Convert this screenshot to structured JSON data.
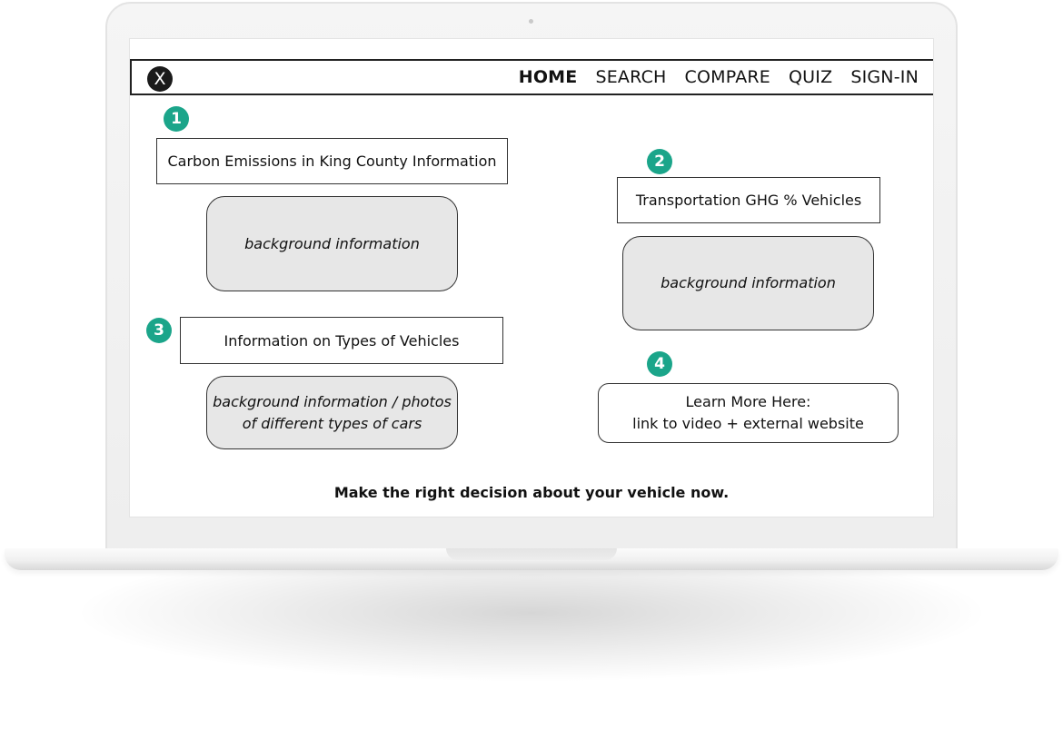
{
  "brand": {
    "logo_letter": "X"
  },
  "nav": {
    "items": [
      {
        "label": "HOME",
        "active": true
      },
      {
        "label": "SEARCH",
        "active": false
      },
      {
        "label": "COMPARE",
        "active": false
      },
      {
        "label": "QUIZ",
        "active": false
      },
      {
        "label": "SIGN-IN",
        "active": false
      }
    ]
  },
  "sections": [
    {
      "number": "1",
      "title": "Carbon Emissions in King County Information",
      "body": "background information"
    },
    {
      "number": "2",
      "title": "Transportation GHG % Vehicles",
      "body": "background information"
    },
    {
      "number": "3",
      "title": "Information on Types of Vehicles",
      "body_line1": "background information / photos",
      "body_line2": "of different types of cars"
    },
    {
      "number": "4",
      "line1": "Learn More Here:",
      "line2": "link to video + external website"
    }
  ],
  "cta": "Make the right decision about your vehicle now.",
  "colors": {
    "badge": "#1ba58a",
    "info_fill": "#e7e7e7"
  }
}
